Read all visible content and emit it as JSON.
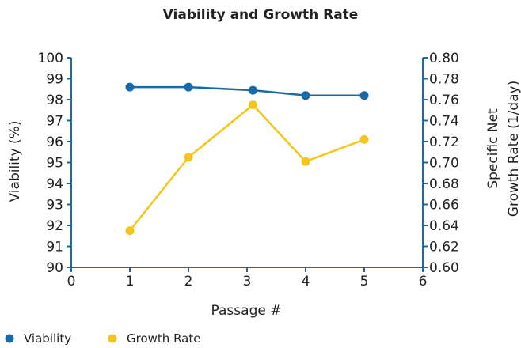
{
  "chart_data": {
    "type": "line",
    "title": "Viability and Growth Rate",
    "xlabel": "Passage #",
    "ylabel_left": "Viability (%)",
    "ylabel_right": [
      "Specific Net",
      "Growth Rate (1/day)"
    ],
    "xlim": [
      0,
      6
    ],
    "x_ticks": [
      "0",
      "1",
      "2",
      "3",
      "4",
      "5",
      "6"
    ],
    "ylim_left": [
      90,
      100
    ],
    "y_ticks_left": [
      "90",
      "91",
      "92",
      "93",
      "94",
      "95",
      "96",
      "97",
      "98",
      "99",
      "100"
    ],
    "ylim_right": [
      0.6,
      0.8
    ],
    "y_ticks_right": [
      "0.60",
      "0.62",
      "0.64",
      "0.66",
      "0.68",
      "0.70",
      "0.72",
      "0.74",
      "0.76",
      "0.78",
      "0.80"
    ],
    "grid": false,
    "legend": "bottom-left",
    "series": [
      {
        "name": "Viability",
        "axis": "left",
        "color": "#1769aa",
        "x": [
          1,
          2,
          3.1,
          4,
          5
        ],
        "y": [
          98.6,
          98.6,
          98.45,
          98.2,
          98.2
        ]
      },
      {
        "name": "Growth Rate",
        "axis": "right",
        "color": "#f5c518",
        "x": [
          1,
          2,
          3.1,
          4,
          5
        ],
        "y": [
          0.635,
          0.705,
          0.755,
          0.701,
          0.722
        ]
      }
    ]
  }
}
